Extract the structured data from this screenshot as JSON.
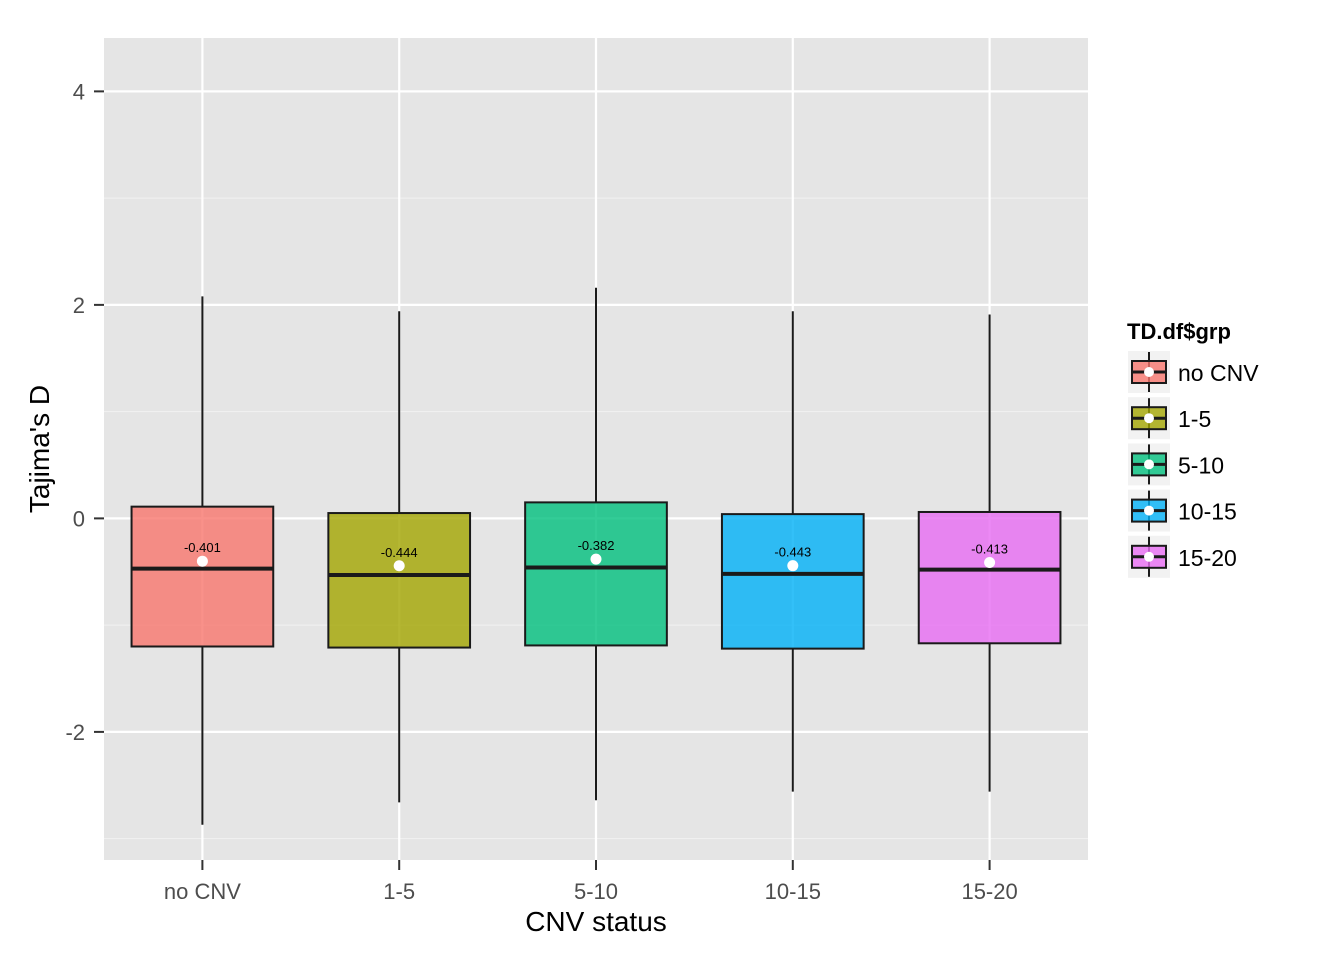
{
  "chart_data": {
    "type": "boxplot",
    "xlabel": "CNV status",
    "ylabel": "Tajima's D",
    "ylim": [
      -3.2,
      4.5
    ],
    "yticks": [
      -2,
      0,
      2,
      4
    ],
    "grid": true,
    "legend": {
      "title": "TD.df$grp",
      "position": "right"
    },
    "categories": [
      "no CNV",
      "1-5",
      "5-10",
      "10-15",
      "15-20"
    ],
    "colors": [
      "#F8766D",
      "#A3A500",
      "#00BF7D",
      "#00B0F6",
      "#E76BF3"
    ],
    "boxes": [
      {
        "category": "no CNV",
        "whisker_low": -2.87,
        "q1": -1.2,
        "median": -0.47,
        "q3": 0.11,
        "whisker_high": 2.08,
        "mean": -0.401,
        "mean_label": "-0.401"
      },
      {
        "category": "1-5",
        "whisker_low": -2.66,
        "q1": -1.21,
        "median": -0.53,
        "q3": 0.05,
        "whisker_high": 1.94,
        "mean": -0.444,
        "mean_label": "-0.444"
      },
      {
        "category": "5-10",
        "whisker_low": -2.64,
        "q1": -1.19,
        "median": -0.46,
        "q3": 0.15,
        "whisker_high": 2.16,
        "mean": -0.382,
        "mean_label": "-0.382"
      },
      {
        "category": "10-15",
        "whisker_low": -2.56,
        "q1": -1.22,
        "median": -0.52,
        "q3": 0.04,
        "whisker_high": 1.94,
        "mean": -0.443,
        "mean_label": "-0.443"
      },
      {
        "category": "15-20",
        "whisker_low": -2.56,
        "q1": -1.17,
        "median": -0.48,
        "q3": 0.06,
        "whisker_high": 1.91,
        "mean": -0.413,
        "mean_label": "-0.413"
      }
    ]
  }
}
